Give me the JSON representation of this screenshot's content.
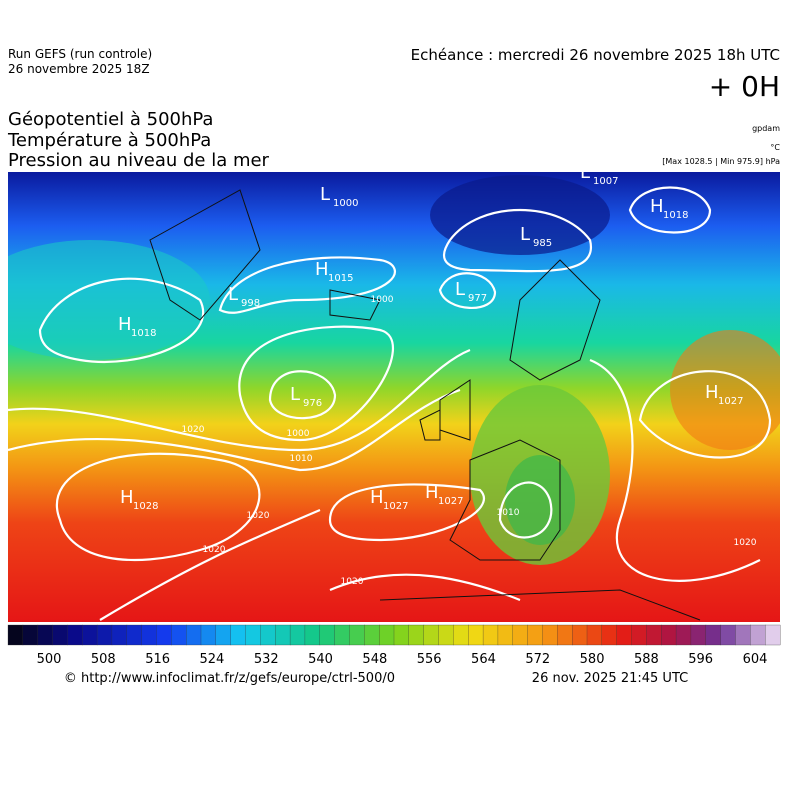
{
  "header": {
    "run": "Run GEFS (run controle)",
    "run_date": "26 novembre 2025 18Z",
    "valid": "Echéance : mercredi 26 novembre 2025 18h UTC",
    "lead": "+ 0H"
  },
  "titles": [
    "Géopotentiel à 500hPa",
    "Température à 500hPa",
    "Pression au niveau de la mer"
  ],
  "units": {
    "geopotential": "gpdam",
    "temperature": "°C",
    "pressure": "[Max 1028.5 | Min 975.9] hPa"
  },
  "pressure_centers": [
    {
      "kind": "L",
      "value": "1000"
    },
    {
      "kind": "L",
      "value": "1007"
    },
    {
      "kind": "H",
      "value": "1018"
    },
    {
      "kind": "L",
      "value": "985"
    },
    {
      "kind": "H",
      "value": "1015"
    },
    {
      "kind": "L",
      "value": "998"
    },
    {
      "kind": "L",
      "value": "977"
    },
    {
      "kind": "H",
      "value": "1018"
    },
    {
      "kind": "L",
      "value": "976"
    },
    {
      "kind": "H",
      "value": "1027"
    },
    {
      "kind": "H",
      "value": "1028"
    },
    {
      "kind": "H",
      "value": "1027"
    },
    {
      "kind": "H",
      "value": "1027"
    }
  ],
  "isobar_labels": [
    "1000",
    "1000",
    "1010",
    "1020",
    "1020",
    "1020",
    "1020",
    "1010",
    "1020"
  ],
  "colorbar_labels": [
    "500",
    "508",
    "516",
    "524",
    "532",
    "540",
    "548",
    "556",
    "564",
    "572",
    "580",
    "588",
    "596",
    "604"
  ],
  "footer": {
    "source": "© http://www.infoclimat.fr/z/gefs/europe/ctrl-500/0",
    "generated": "26 nov. 2025 21:45 UTC"
  }
}
